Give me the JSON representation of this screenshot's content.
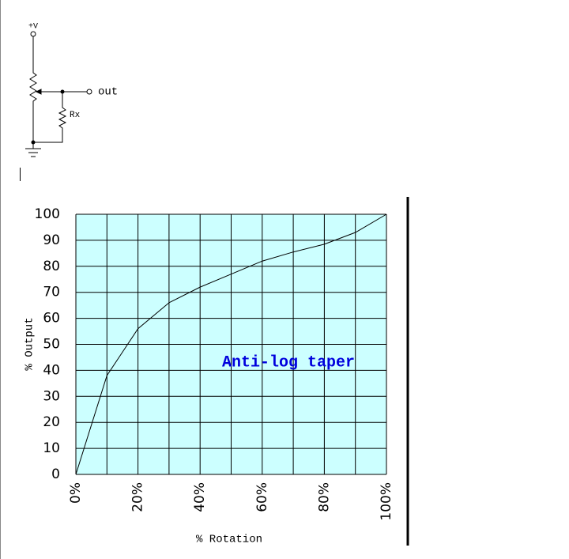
{
  "circuit": {
    "supply": "+V",
    "output": "out",
    "resistor": "Rx"
  },
  "chart_data": {
    "type": "line",
    "x": [
      0,
      10,
      15,
      20,
      30,
      40,
      50,
      60,
      70,
      80,
      90,
      100
    ],
    "series": [
      {
        "values": [
          0,
          38,
          47,
          56,
          66,
          72,
          77,
          82,
          85.5,
          88.5,
          93,
          100
        ],
        "color": "#000000"
      }
    ],
    "xlim": [
      0,
      100
    ],
    "ylim": [
      0,
      100
    ],
    "xticks": [
      {
        "value": 0,
        "label": "0%"
      },
      {
        "value": 20,
        "label": "20%"
      },
      {
        "value": 40,
        "label": "40%"
      },
      {
        "value": 60,
        "label": "60%"
      },
      {
        "value": 80,
        "label": "80%"
      },
      {
        "value": 100,
        "label": "100%"
      }
    ],
    "yticks": [
      0,
      10,
      20,
      30,
      40,
      50,
      60,
      70,
      80,
      90,
      100
    ],
    "xlabel": "% Rotation",
    "ylabel": "% Output",
    "annotation": "Anti-log taper",
    "grid": true,
    "background": "#ccffff"
  }
}
